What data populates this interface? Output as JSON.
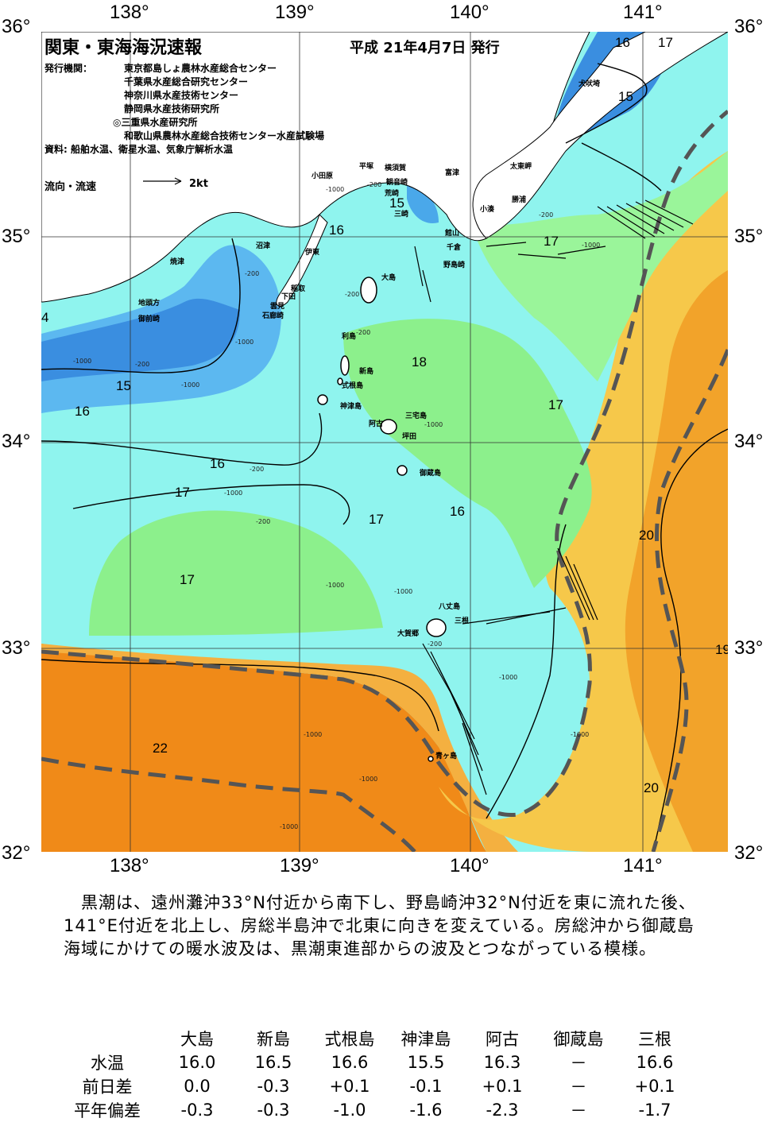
{
  "header": {
    "title": "関東・東海海況速報",
    "issue_date": "平成 21年4月7日 発行"
  },
  "issuers": {
    "label": "発行機関：",
    "names": [
      "東京都島しょ農林水産総合センター",
      "千葉県水産総合研究センター",
      "神奈川県水産技術センター",
      "静岡県水産技術研究所",
      "◎三重県水産研究所",
      "和歌山県農林水産総合技術センター水産試験場"
    ],
    "sources": "資料: 船舶水温、衛星水温、気象庁解析水温"
  },
  "legend": {
    "flow_label": "流向・流速",
    "scale_label": "2kt"
  },
  "axes": {
    "top": [
      "138°",
      "139°",
      "140°",
      "141°"
    ],
    "bottom": [
      "138°",
      "139°",
      "140°",
      "141°"
    ],
    "left": [
      "36°",
      "35°",
      "34°",
      "33°",
      "32°"
    ],
    "right": [
      "36°",
      "35°",
      "34°",
      "33°",
      "32°"
    ]
  },
  "places": [
    "犬吠埼",
    "太東岬",
    "勝浦",
    "小湊",
    "富津",
    "横須賀",
    "観音崎",
    "荒崎",
    "三崎",
    "平塚",
    "小田原",
    "館山",
    "千倉",
    "野島崎",
    "大島",
    "伊東",
    "沼津",
    "焼津",
    "稲取",
    "下田",
    "雲見",
    "石廊崎",
    "地頭方",
    "御前崎",
    "利島",
    "新島",
    "式根島",
    "神津島",
    "三宅島",
    "阿古",
    "坪田",
    "御蔵島",
    "八丈島",
    "大賀郷",
    "三根",
    "青ヶ島"
  ],
  "isotherm_labels": [
    "16",
    "17",
    "15",
    "15",
    "16",
    "17",
    "18",
    "15",
    "16",
    "17",
    "16",
    "17",
    "17",
    "16",
    "17",
    "20",
    "19",
    "22",
    "20",
    "4"
  ],
  "depth_labels": [
    "-1000",
    "-200",
    "-200",
    "-1000",
    "-200",
    "-200",
    "-1000",
    "-200",
    "-1000",
    "-200",
    "-1000",
    "-200",
    "-1000",
    "-1000",
    "-1000",
    "-1000",
    "-1000",
    "-200",
    "-1000",
    "-1000",
    "-1000",
    "-1000",
    "-200"
  ],
  "summary": "黒潮は、遠州灘沖33°N付近から南下し、野島崎沖32°N付近を東に流れた後、141°E付近を北上し、房総半島沖で北東に向きを変えている。房総沖から御蔵島海域にかけての暖水波及は、黒潮東進部からの波及とつながっている模様。",
  "table": {
    "columns": [
      "大島",
      "新島",
      "式根島",
      "神津島",
      "阿古",
      "御蔵島",
      "三根"
    ],
    "rows": [
      {
        "label": "水温",
        "values": [
          "16.0",
          "16.5",
          "16.6",
          "15.5",
          "16.3",
          "－",
          "16.6"
        ]
      },
      {
        "label": "前日差",
        "values": [
          "0.0",
          "-0.3",
          "+0.1",
          "-0.1",
          "+0.1",
          "－",
          "+0.1"
        ]
      },
      {
        "label": "平年偏差",
        "values": [
          "-0.3",
          "-0.3",
          "-1.0",
          "-1.6",
          "-2.3",
          "－",
          "-1.7"
        ]
      }
    ]
  },
  "colors": {
    "cold_blue": "#3f9ae6",
    "cool_cyan": "#7fe8f0",
    "mild_green": "#8ff08f",
    "warm_yellow": "#f4d060",
    "hot_orange": "#f0901c",
    "land": "#ffffff",
    "kuroshio_axis": "#555555"
  }
}
